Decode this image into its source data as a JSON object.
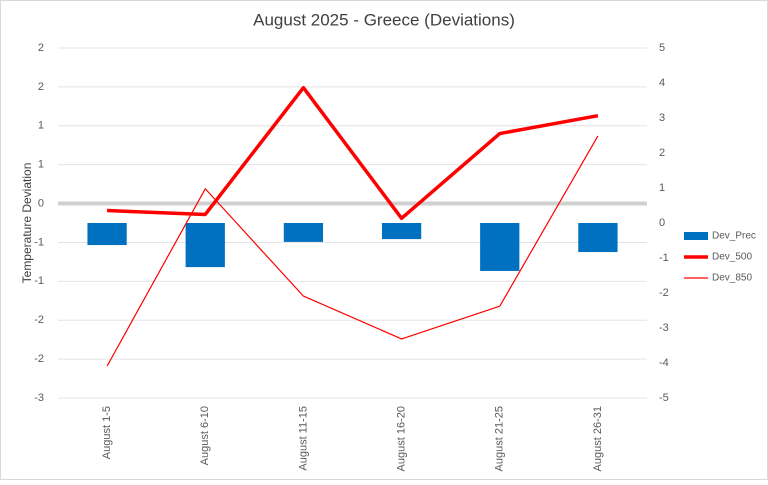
{
  "chart_data": {
    "type": "combo",
    "title": "August 2025 - Greece (Deviations)",
    "y_label": "Temperature Deviation",
    "categories": [
      "August 1-5",
      "August 6-10",
      "August 11-15",
      "August 16-20",
      "August 21-25",
      "August 26-31"
    ],
    "series": [
      {
        "name": "Dev_Prec",
        "type": "bar",
        "axis": "y2",
        "color": "#0070c0",
        "values": [
          -0.63,
          -1.26,
          -0.54,
          -0.46,
          -1.37,
          -0.83
        ]
      },
      {
        "name": "Dev_500",
        "type": "line",
        "color": "#ff0000",
        "values": [
          -0.09,
          -0.14,
          1.49,
          -0.19,
          0.9,
          1.13
        ]
      },
      {
        "name": "Dev_850",
        "type": "line",
        "color": "#ff0000",
        "values": [
          -2.09,
          0.19,
          -1.19,
          -1.74,
          -1.32,
          0.87
        ]
      }
    ],
    "ylim": [
      -2.5,
      2
    ],
    "yticks": [
      {
        "value": -2.5,
        "label": "-3"
      },
      {
        "value": -2,
        "label": "-2"
      },
      {
        "value": -1.5,
        "label": "-2"
      },
      {
        "value": -1,
        "label": "-1"
      },
      {
        "value": -0.5,
        "label": "-1"
      },
      0,
      {
        "value": 0.5,
        "label": "1"
      },
      1,
      {
        "value": 1.5,
        "label": "2"
      },
      2
    ],
    "y2lim": [
      -5,
      5
    ],
    "y2ticks": [
      -5,
      -4,
      -3,
      -2,
      -1,
      0,
      1,
      2,
      3,
      4,
      5
    ],
    "grid": true,
    "legend": "right"
  }
}
